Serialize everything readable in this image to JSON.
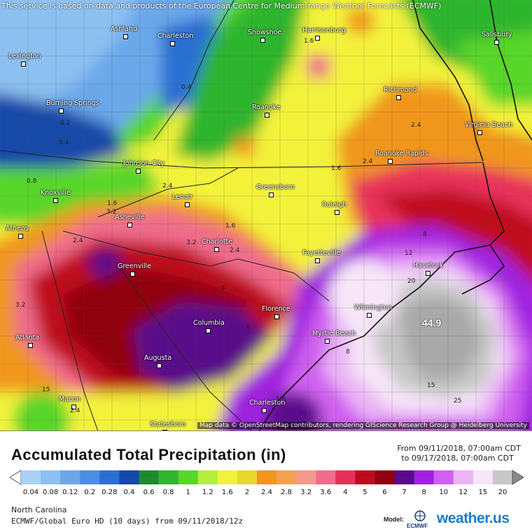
{
  "map": {
    "notice": "This service is based on data and products of the European Centre for Medium-range Weather Forecasts (ECMWF)",
    "attribution": "Map data © OpenStreetMap contributors, rendering GIScience Research Group @ Heidelberg University",
    "max_value_label": "44.9",
    "cities": [
      "Ashland",
      "Charleston",
      "Snowshoe",
      "Harrisonburg",
      "Salisbury",
      "Lexington",
      "Burning Springs",
      "Roanoke",
      "Richmond",
      "Virginia Beach",
      "Johnson City",
      "Roanoke Rapids",
      "Knoxville",
      "Greensboro",
      "Lenoir",
      "Raleigh",
      "Athens",
      "Asheville",
      "Greenville",
      "Charlotte",
      "Havelock",
      "Fayetteville",
      "Wilmington",
      "Florence",
      "Columbia",
      "Myrtle Beach",
      "Augusta",
      "Atlanta",
      "Macon",
      "Charleston",
      "Statesboro"
    ],
    "contour_labels": [
      "1.6",
      "0.4",
      "0.2",
      "0.4",
      "0.8",
      "2.4",
      "1.6",
      "2.4",
      "2.4",
      "1.6",
      "3.2",
      "2.4",
      "1.6",
      "3.2",
      "2.4",
      "8",
      "12",
      "20",
      "3.2",
      "4",
      "6",
      "8",
      "15",
      "25",
      "15",
      "2.4",
      "1.6",
      "12"
    ]
  },
  "legend": {
    "title": "Accumulated Total Precipitation (in)",
    "date_from": "From 09/11/2018, 07:00am CDT",
    "date_to": "to 09/17/2018, 07:00am CDT",
    "ticks": [
      "0.04",
      "0.08",
      "0.12",
      "0.2",
      "0.28",
      "0.4",
      "0.6",
      "0.8",
      "1",
      "1.2",
      "1.6",
      "2",
      "2.4",
      "2.8",
      "3.2",
      "3.6",
      "4",
      "5",
      "6",
      "7",
      "8",
      "10",
      "12",
      "15",
      "20"
    ],
    "colors": [
      "#a9d0f5",
      "#8cc0f0",
      "#6aa8ea",
      "#4a8ee2",
      "#2c6fd3",
      "#1548a8",
      "#1e8a2e",
      "#2fb52f",
      "#59d62a",
      "#b6ee3c",
      "#f2f23a",
      "#e7d82a",
      "#f0961e",
      "#f4a050",
      "#f49a8c",
      "#f06c8c",
      "#e8305a",
      "#c00a1e",
      "#900010",
      "#5a0a8a",
      "#a020e0",
      "#d060f0",
      "#eab4f5",
      "#f6e6f8",
      "#c8c8c8"
    ]
  },
  "footer": {
    "region": "North Carolina",
    "model_run": "ECMWF/Global Euro HD (10 days) from 09/11/2018/12z",
    "model_label": "Model:",
    "ecmwf_text": "ECMWF",
    "brand": "weather.us"
  }
}
